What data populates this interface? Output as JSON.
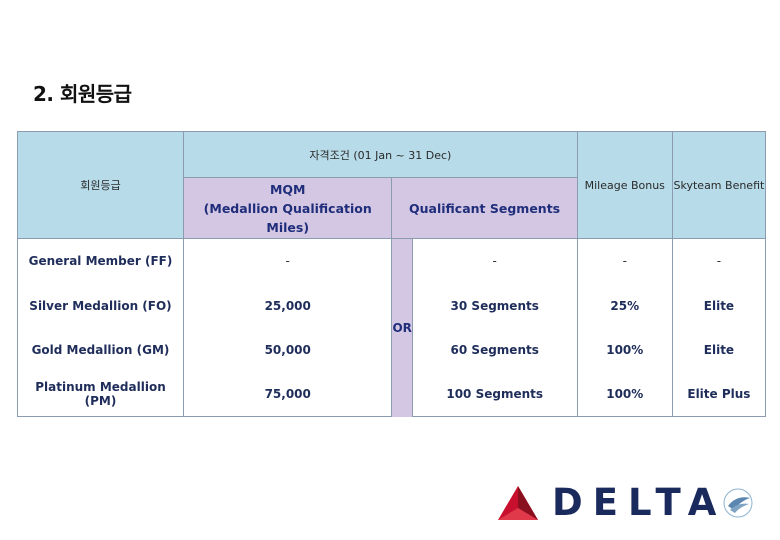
{
  "heading": "2. 회원등급",
  "table": {
    "header": {
      "tier": "회원등급",
      "qualification": "자격조건 (01 Jan ~ 31 Dec)",
      "mqm_line1": "MQM",
      "mqm_line2": "(Medallion Qualification Miles)",
      "segments": "Qualificant Segments",
      "bonus": "Mileage Bonus",
      "skyteam": "Skyteam Benefit"
    },
    "or_label": "OR",
    "rows": [
      {
        "tier": "General Member (FF)",
        "mqm": "-",
        "segments": "-",
        "bonus": "-",
        "skyteam": "-"
      },
      {
        "tier": "Silver Medallion (FO)",
        "mqm": "25,000",
        "segments": "30 Segments",
        "bonus": "25%",
        "skyteam": "Elite"
      },
      {
        "tier": "Gold Medallion (GM)",
        "mqm": "50,000",
        "segments": "60 Segments",
        "bonus": "100%",
        "skyteam": "Elite"
      },
      {
        "tier": "Platinum Medallion (PM)",
        "mqm": "75,000",
        "segments": "100 Segments",
        "bonus": "100%",
        "skyteam": "Elite Plus"
      }
    ]
  },
  "logo": {
    "wordmark": "DELTA",
    "skyteam_text": "SKYTEAM",
    "colors": {
      "red": "#c8102e",
      "dark_red": "#8a1020",
      "navy": "#1a2a5c"
    }
  }
}
